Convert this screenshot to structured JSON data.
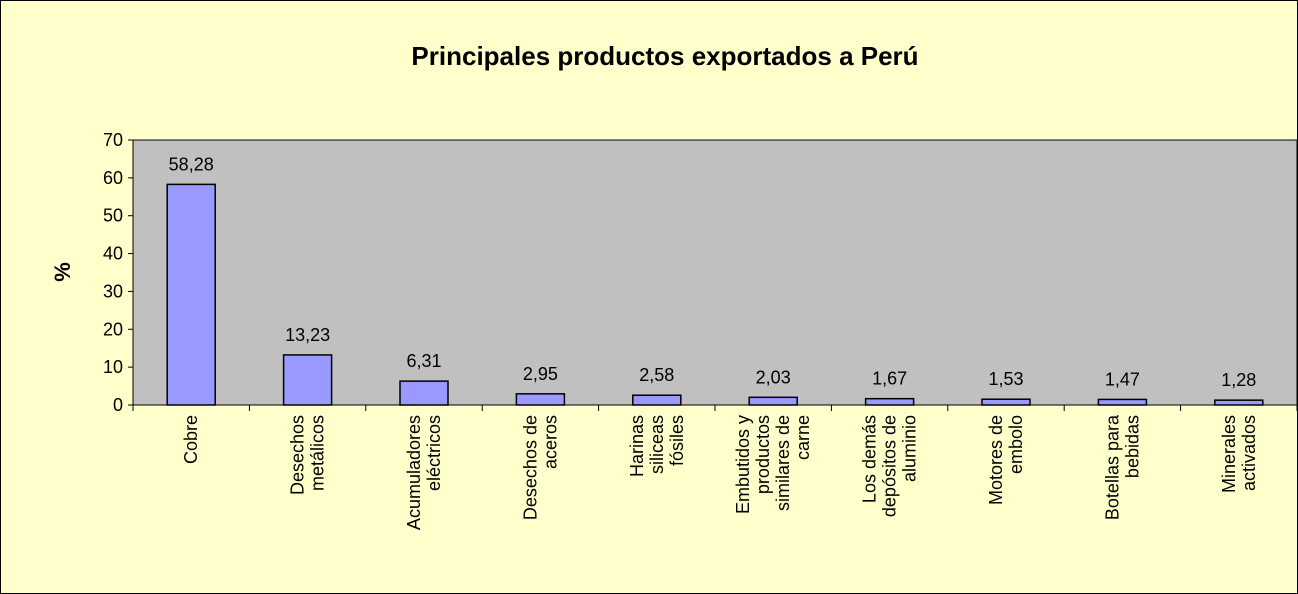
{
  "chart_data": {
    "type": "bar",
    "title": "Principales productos exportados a Perú",
    "ylabel": "%",
    "categories": [
      "Cobre",
      "Desechos\nmetálicos",
      "Acumuladores\neléctricos",
      "Desechos de\naceros",
      "Harinas\nsiliceas\nfósiles",
      "Embutidos y\nproductos\nsimilares de\ncarne",
      "Los demás\ndepósitos de\naluminio",
      "Motores de\nembolo",
      "Botellas para\nbebidas",
      "Minerales\nactivados"
    ],
    "values": [
      58.28,
      13.23,
      6.31,
      2.95,
      2.58,
      2.03,
      1.67,
      1.53,
      1.47,
      1.28
    ],
    "value_labels": [
      "58,28",
      "13,23",
      "6,31",
      "2,95",
      "2,58",
      "2,03",
      "1,67",
      "1,53",
      "1,47",
      "1,28"
    ],
    "color": "#9999ff",
    "ylim": [
      0,
      70
    ],
    "yticks": [
      0,
      10,
      20,
      30,
      40,
      50,
      60,
      70
    ],
    "grid": false
  }
}
